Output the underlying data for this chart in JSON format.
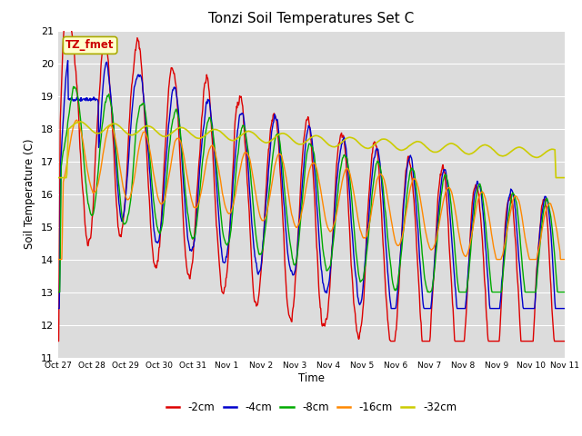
{
  "title": "Tonzi Soil Temperatures Set C",
  "xlabel": "Time",
  "ylabel": "Soil Temperature (C)",
  "ylim": [
    11.0,
    21.0
  ],
  "yticks": [
    11.0,
    12.0,
    13.0,
    14.0,
    15.0,
    16.0,
    17.0,
    18.0,
    19.0,
    20.0,
    21.0
  ],
  "xtick_labels": [
    "Oct 27",
    "Oct 28",
    "Oct 29",
    "Oct 30",
    "Oct 31",
    "Nov 1",
    "Nov 2",
    "Nov 3",
    "Nov 4",
    "Nov 5",
    "Nov 6",
    "Nov 7",
    "Nov 8",
    "Nov 9",
    "Nov 10",
    "Nov 11"
  ],
  "series_colors": {
    "-2cm": "#dd0000",
    "-4cm": "#0000cc",
    "-8cm": "#00aa00",
    "-16cm": "#ff8800",
    "-32cm": "#cccc00"
  },
  "annotation_text": "TZ_fmet",
  "annotation_bg": "#ffffcc",
  "annotation_border": "#aaaa00",
  "plot_bg": "#dcdcdc",
  "grid_color": "#ffffff"
}
